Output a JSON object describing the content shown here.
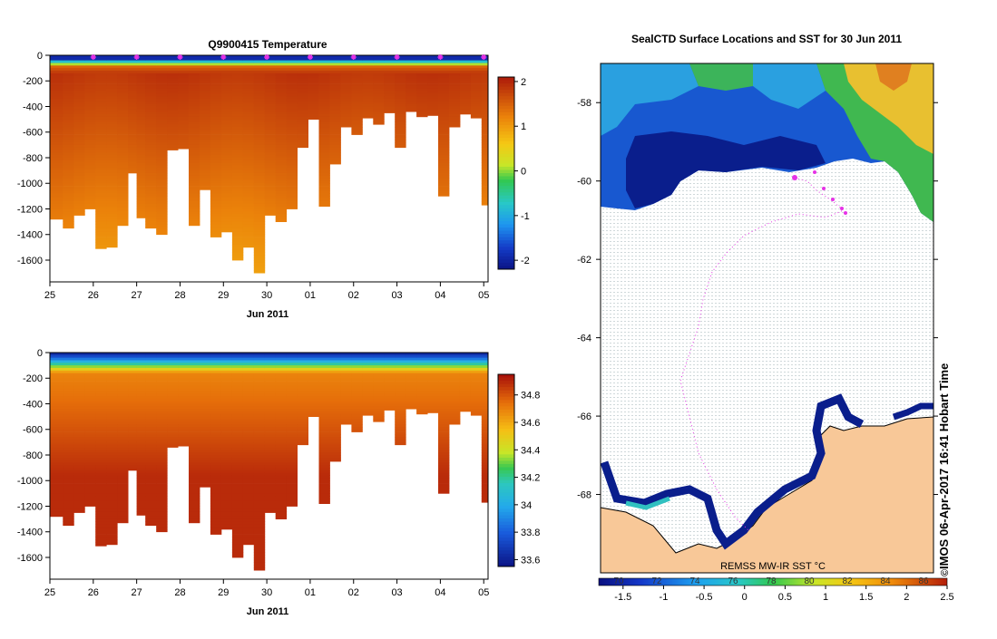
{
  "chart_data": [
    {
      "type": "heatmap",
      "title": "Q9900415  Temperature",
      "xlabel": "Jun 2011",
      "ylabel": "",
      "x_ticks": [
        "25",
        "26",
        "27",
        "28",
        "29",
        "30",
        "01",
        "02",
        "03",
        "04",
        "05"
      ],
      "y_ticks": [
        "0",
        "-200",
        "-400",
        "-600",
        "-800",
        "-1000",
        "-1200",
        "-1400",
        "-1600"
      ],
      "y_tick_values": [
        0,
        -200,
        -400,
        -600,
        -800,
        -1000,
        -1200,
        -1400,
        -1600
      ],
      "ylim": [
        -1770,
        0
      ],
      "xlim": [
        25,
        35.1
      ],
      "colorbar_ticks": [
        "2",
        "1",
        "0",
        "-1",
        "-2"
      ],
      "colorbar_values": [
        2,
        1,
        0,
        -1,
        -2
      ],
      "colorbar_range": [
        -2.2,
        2.1
      ],
      "marker_days": [
        26,
        27,
        28,
        29,
        30,
        31,
        32,
        33,
        34,
        35
      ],
      "dive_days": [
        25,
        25.3,
        25.55,
        25.8,
        26.05,
        26.3,
        26.55,
        26.8,
        27,
        27.2,
        27.45,
        27.7,
        27.95,
        28.2,
        28.45,
        28.7,
        28.95,
        29.2,
        29.45,
        29.7,
        29.95,
        30.2,
        30.45,
        30.7,
        30.95,
        31.2,
        31.45,
        31.7,
        31.95,
        32.2,
        32.45,
        32.7,
        32.95,
        33.2,
        33.45,
        33.7,
        33.95,
        34.2,
        34.45,
        34.7,
        34.95
      ],
      "dive_max_depth": [
        -1280,
        -1350,
        -1250,
        -1200,
        -1510,
        -1500,
        -1330,
        -920,
        -1270,
        -1350,
        -1400,
        -740,
        -730,
        -1330,
        -1050,
        -1420,
        -1380,
        -1600,
        -1500,
        -1700,
        -1250,
        -1300,
        -1200,
        -720,
        -500,
        -1180,
        -850,
        -560,
        -620,
        -490,
        -540,
        -450,
        -720,
        -440,
        -480,
        -470,
        -1100,
        -560,
        -460,
        -490,
        -1170
      ]
    },
    {
      "type": "heatmap",
      "title": "",
      "xlabel": "Jun 2011",
      "ylabel": "",
      "x_ticks": [
        "25",
        "26",
        "27",
        "28",
        "29",
        "30",
        "01",
        "02",
        "03",
        "04",
        "05"
      ],
      "y_ticks": [
        "0",
        "-200",
        "-400",
        "-600",
        "-800",
        "-1000",
        "-1200",
        "-1400",
        "-1600"
      ],
      "y_tick_values": [
        0,
        -200,
        -400,
        -600,
        -800,
        -1000,
        -1200,
        -1400,
        -1600
      ],
      "ylim": [
        -1770,
        0
      ],
      "xlim": [
        25,
        35.1
      ],
      "colorbar_ticks": [
        "34.8",
        "34.6",
        "34.4",
        "34.2",
        "34",
        "33.8",
        "33.6"
      ],
      "colorbar_values": [
        34.8,
        34.6,
        34.4,
        34.2,
        34.0,
        33.8,
        33.6
      ],
      "colorbar_range": [
        33.55,
        34.95
      ]
    },
    {
      "type": "heatmap",
      "title": "SealCTD Surface Locations and SST for 30 Jun 2011",
      "xlabel": "",
      "ylabel": "",
      "y_ticks": [
        "-58",
        "-60",
        "-62",
        "-64",
        "-66",
        "-68"
      ],
      "y_tick_values": [
        -58,
        -60,
        -62,
        -64,
        -66,
        -68
      ],
      "ylim": [
        -70,
        -57
      ],
      "colorbar_label": "REMSS MW-IR SST °C",
      "colorbar_ticks": [
        "-1.5",
        "-1",
        "-0.5",
        "0",
        "0.5",
        "1",
        "1.5",
        "2",
        "2.5"
      ],
      "colorbar_values": [
        -1.5,
        -1,
        -0.5,
        0,
        0.5,
        1,
        1.5,
        2,
        2.5
      ],
      "colorbar_secondary_ticks": [
        "70",
        "72",
        "74",
        "76",
        "78",
        "80",
        "82",
        "84",
        "86"
      ],
      "colorbar_range": [
        -1.8,
        2.5
      ],
      "credit": "IMOS 06-Apr-2017 16:41 Hobart Time",
      "copyright": "©"
    }
  ],
  "colors": {
    "ocean_cold": "#0a1e8c",
    "ocean_mid": "#1e6edc",
    "ocean_warm": "#3cb45a",
    "land": "#f5c896",
    "track": "#e632e6"
  }
}
